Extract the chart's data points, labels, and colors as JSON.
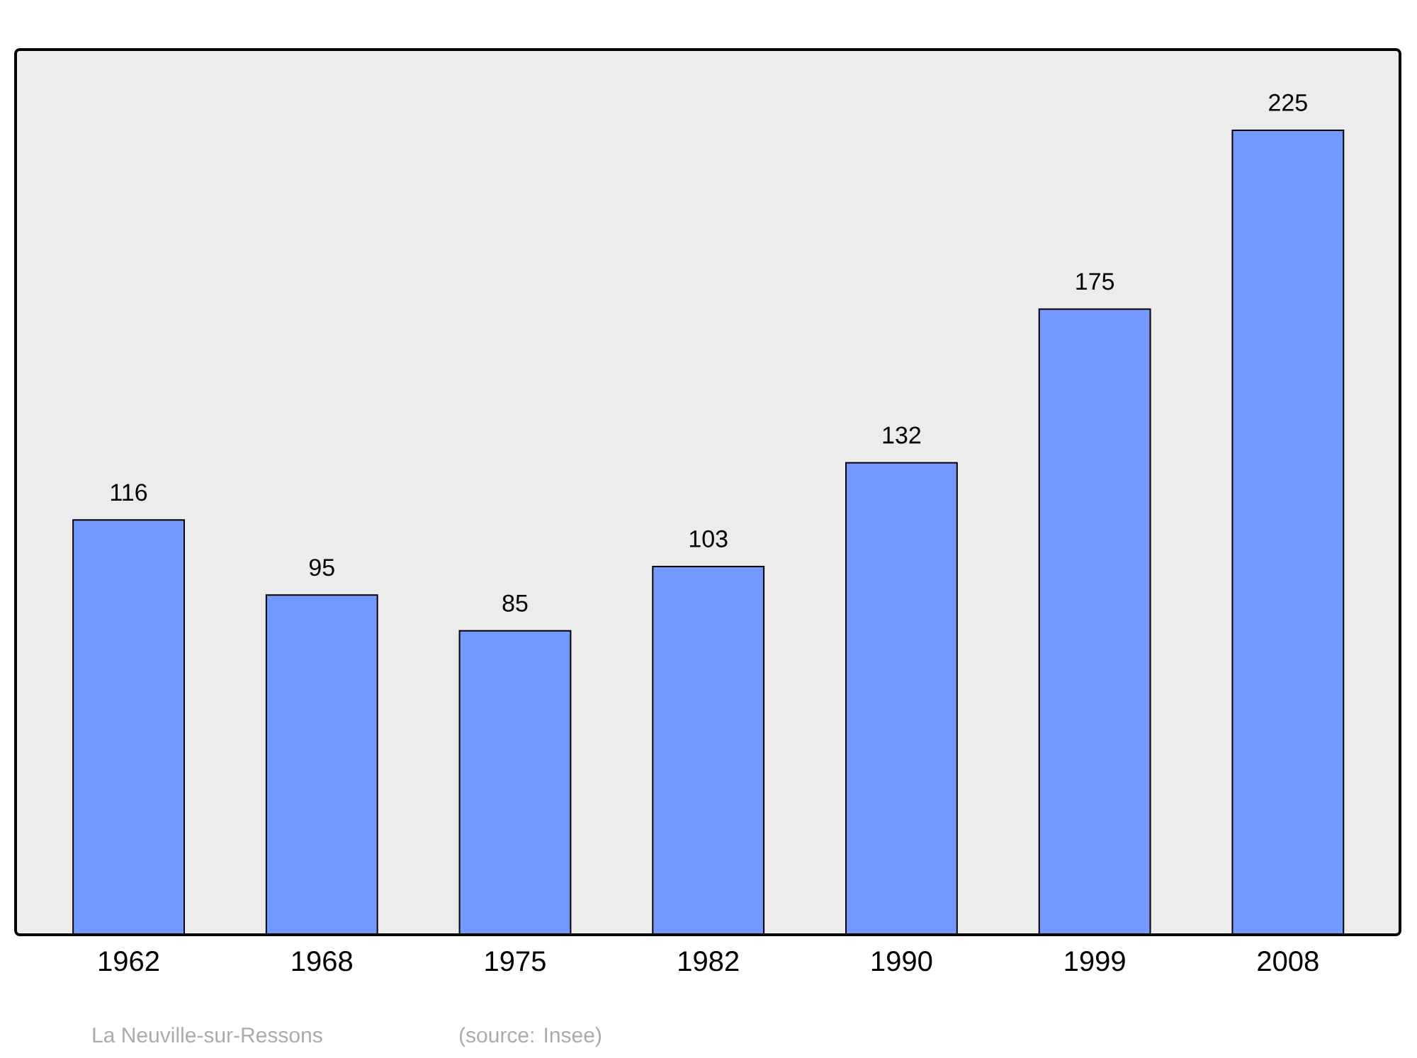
{
  "chart_data": {
    "type": "bar",
    "categories": [
      "1962",
      "1968",
      "1975",
      "1982",
      "1990",
      "1999",
      "2008"
    ],
    "values": [
      116,
      95,
      85,
      103,
      132,
      175,
      225
    ],
    "color": "#7399ff",
    "data_labels": true,
    "annotations": [
      "La Neuville-sur-Ressons",
      "(source: Insee)"
    ]
  }
}
